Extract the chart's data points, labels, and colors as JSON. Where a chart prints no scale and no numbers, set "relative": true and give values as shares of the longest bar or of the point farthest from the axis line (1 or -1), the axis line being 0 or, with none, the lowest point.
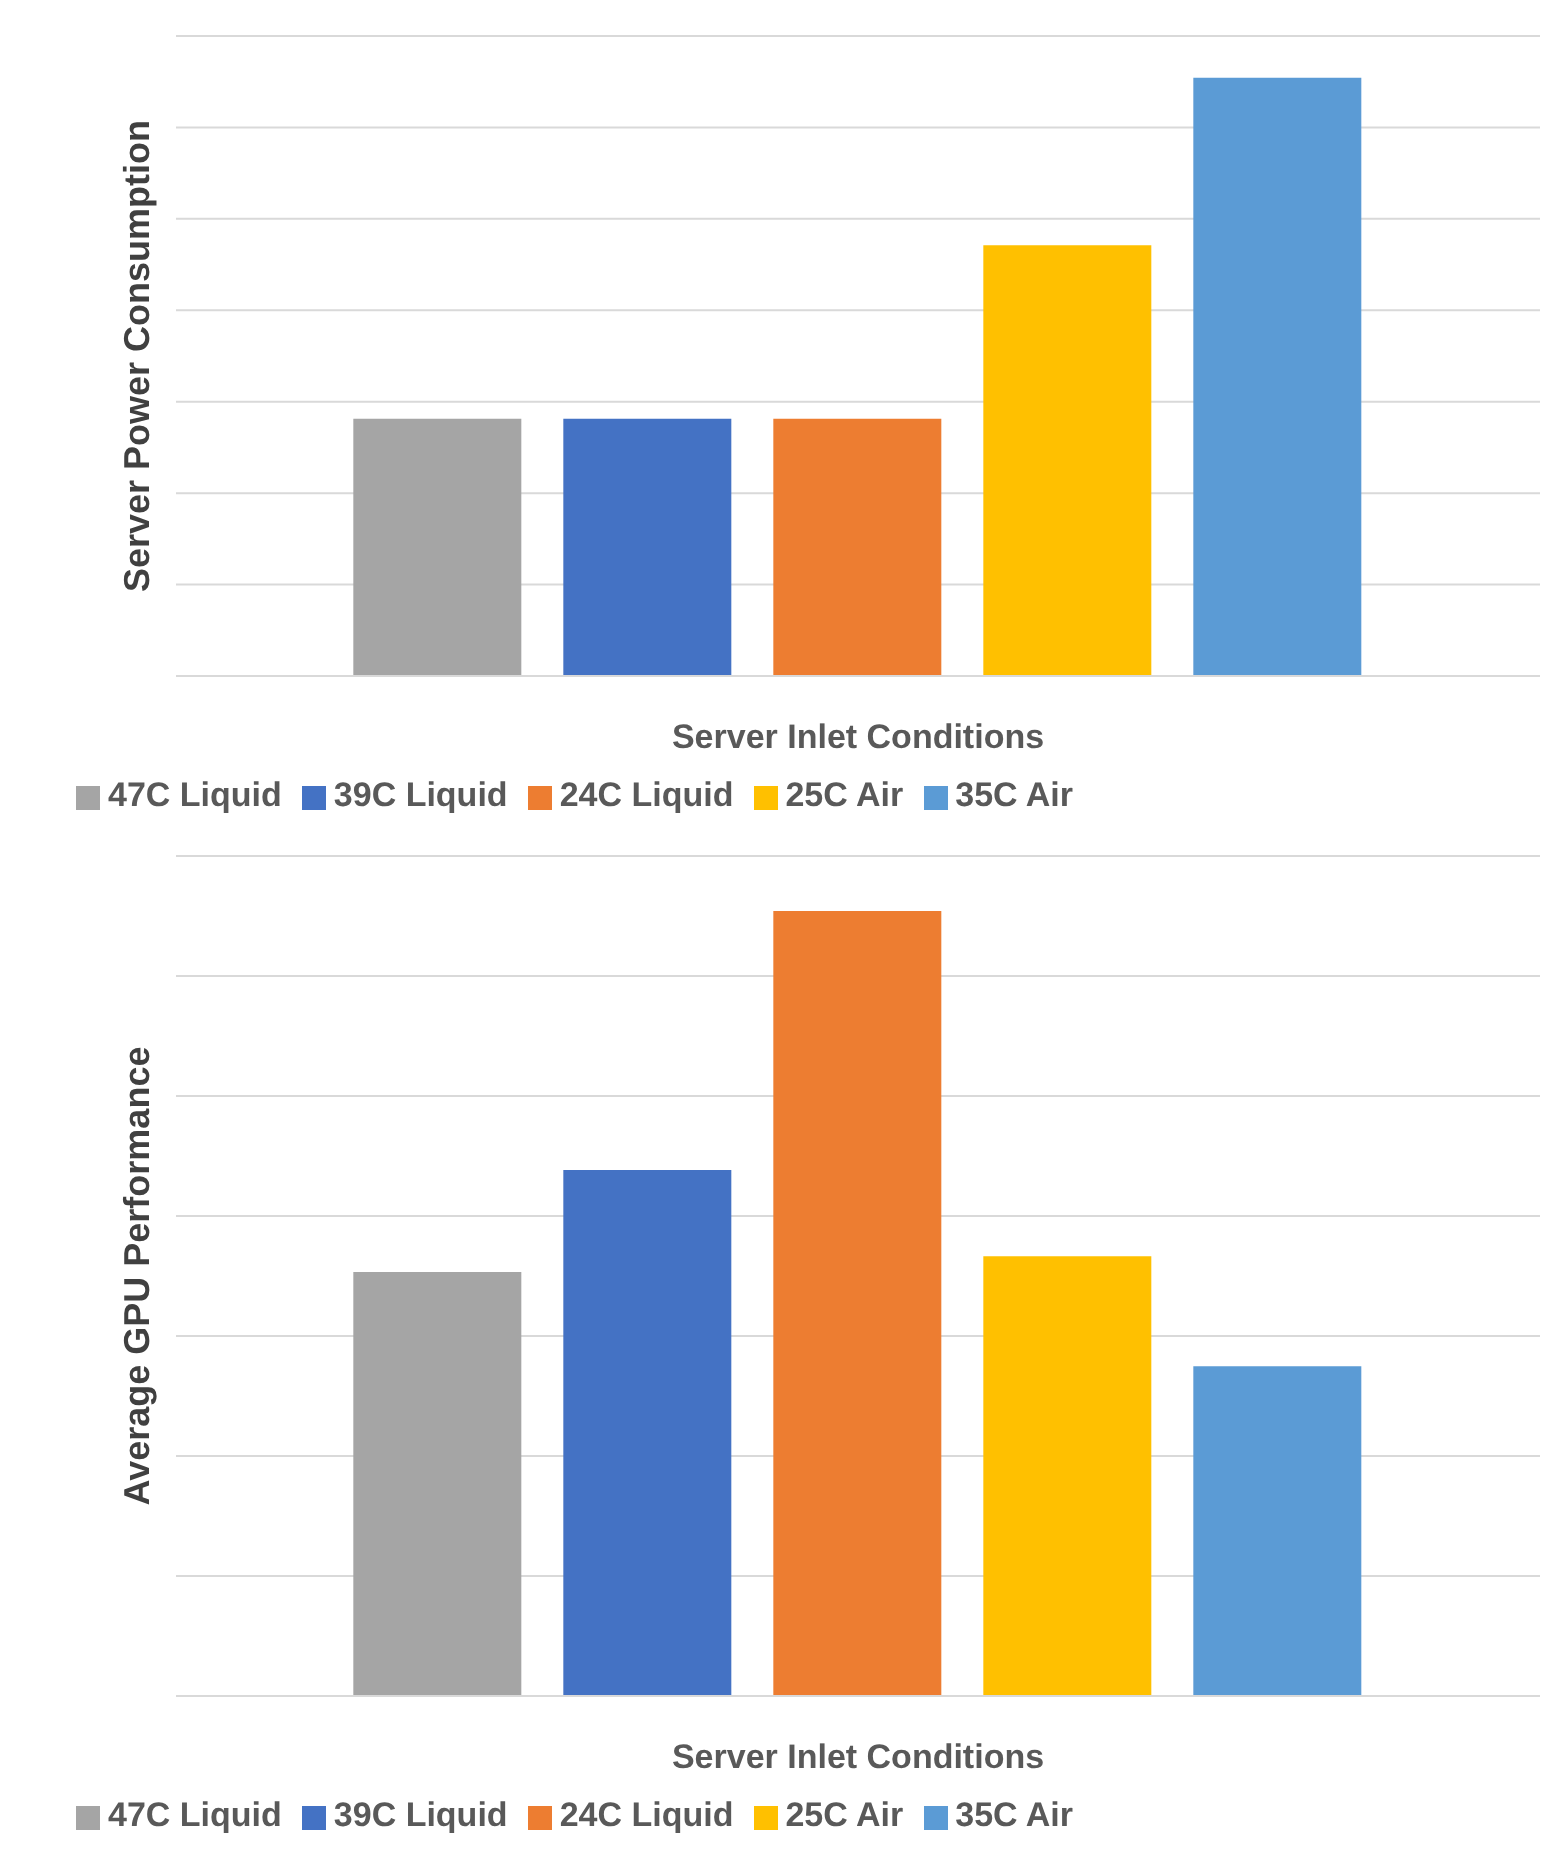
{
  "chart_data": [
    {
      "type": "bar",
      "relative": true,
      "categories": [
        null
      ],
      "ylabel": "Server Power Consumption",
      "xlabel": "Server Inlet Conditions",
      "legend": "bottom",
      "grid": "y",
      "series": [
        {
          "name": "47C Liquid",
          "color": "#a5a5a5",
          "values": [
            0.43
          ]
        },
        {
          "name": "39C Liquid",
          "color": "#4472c4",
          "values": [
            0.43
          ]
        },
        {
          "name": "24C Liquid",
          "color": "#ed7d31",
          "values": [
            0.43
          ]
        },
        {
          "name": "25C Air",
          "color": "#ffc000",
          "values": [
            0.72
          ]
        },
        {
          "name": "35C Air",
          "color": "#5b9bd5",
          "values": [
            1
          ]
        }
      ]
    },
    {
      "type": "bar",
      "relative": true,
      "categories": [
        null
      ],
      "ylabel": "Average GPU Performance",
      "xlabel": "Server Inlet Conditions",
      "legend": "bottom",
      "grid": "y",
      "series": [
        {
          "name": "47C Liquid",
          "color": "#a5a5a5",
          "values": [
            0.54
          ]
        },
        {
          "name": "39C Liquid",
          "color": "#4472c4",
          "values": [
            0.67
          ]
        },
        {
          "name": "24C Liquid",
          "color": "#ed7d31",
          "values": [
            1
          ]
        },
        {
          "name": "25C Air",
          "color": "#ffc000",
          "values": [
            0.56
          ]
        },
        {
          "name": "35C Air",
          "color": "#5b9bd5",
          "values": [
            0.42
          ]
        }
      ]
    }
  ]
}
